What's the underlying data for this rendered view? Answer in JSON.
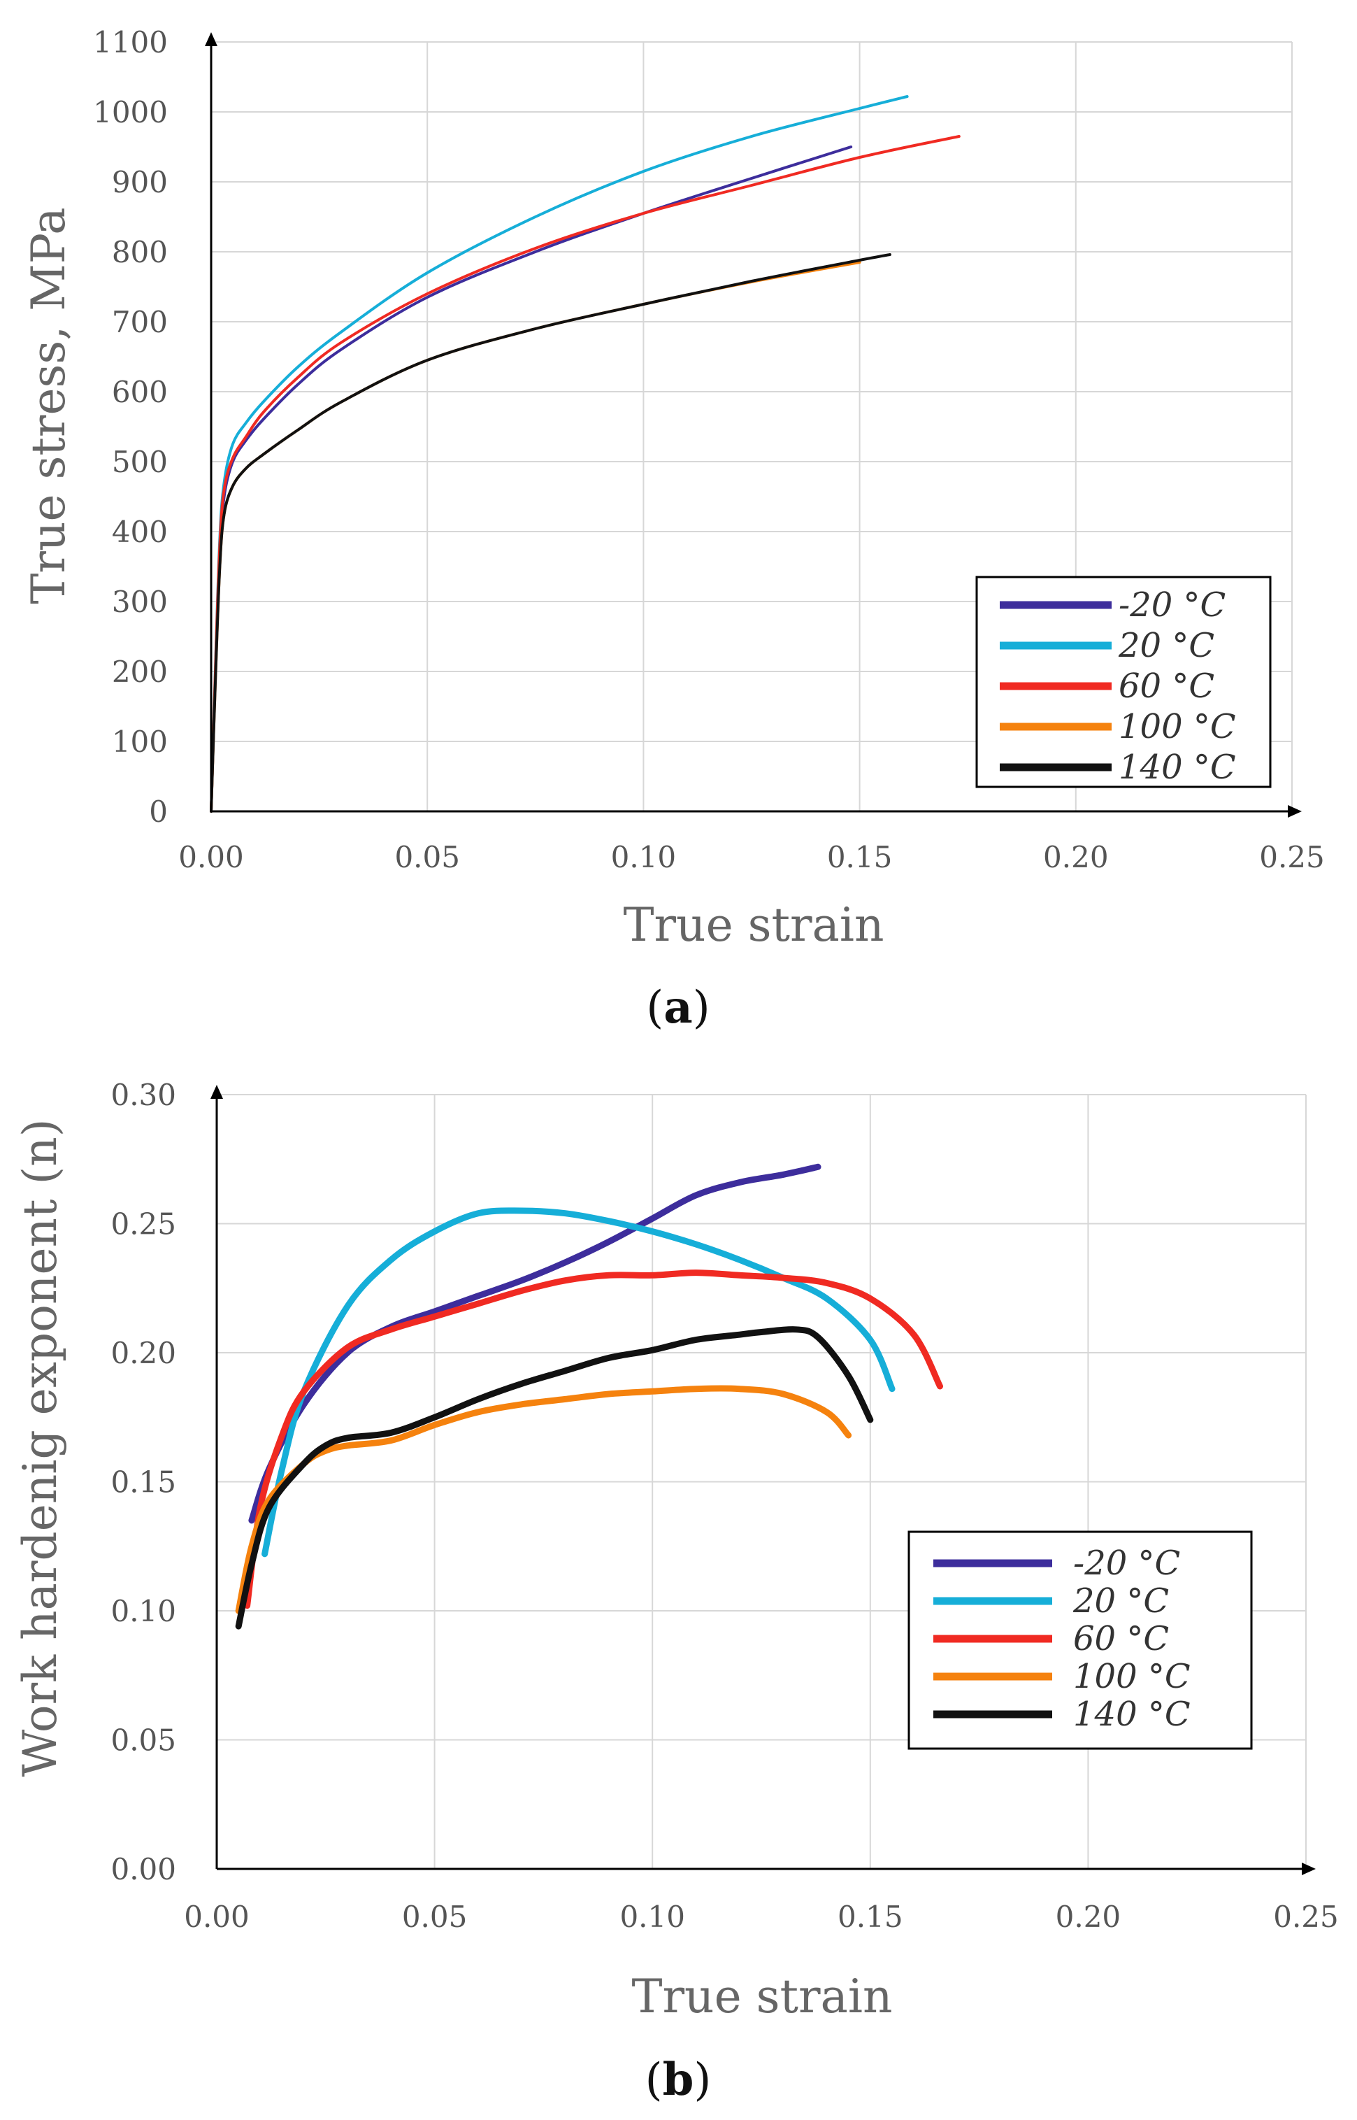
{
  "chart_data": [
    {
      "type": "line",
      "panel": "a",
      "title": "",
      "xlabel": "True strain",
      "ylabel": "True stress, MPa",
      "xlim": [
        0,
        0.25
      ],
      "ylim": [
        0,
        1100
      ],
      "xticks": [
        0,
        0.05,
        0.1,
        0.15,
        0.2,
        0.25
      ],
      "xtick_labels": [
        "0.00",
        "0.05",
        "0.10",
        "0.15",
        "0.20",
        "0.25"
      ],
      "yticks": [
        0,
        100,
        200,
        300,
        400,
        500,
        600,
        700,
        800,
        900,
        1000,
        1100
      ],
      "ytick_labels": [
        "0",
        "100",
        "200",
        "300",
        "400",
        "500",
        "600",
        "700",
        "800",
        "900",
        "1000",
        "1100"
      ],
      "grid": true,
      "legend_position": "bottom-right",
      "series": [
        {
          "name": "-20 °C",
          "color": "#3d2d9c",
          "x": [
            0,
            0.001,
            0.002,
            0.003,
            0.005,
            0.008,
            0.012,
            0.02,
            0.03,
            0.05,
            0.075,
            0.1,
            0.125,
            0.148
          ],
          "y": [
            0,
            200,
            370,
            450,
            500,
            530,
            560,
            610,
            660,
            735,
            800,
            855,
            905,
            950
          ]
        },
        {
          "name": "20 °C",
          "color": "#16aed8",
          "x": [
            0,
            0.001,
            0.002,
            0.003,
            0.005,
            0.008,
            0.012,
            0.02,
            0.03,
            0.05,
            0.075,
            0.1,
            0.125,
            0.15,
            0.161
          ],
          "y": [
            0,
            210,
            390,
            470,
            525,
            555,
            585,
            635,
            685,
            770,
            850,
            915,
            965,
            1005,
            1022
          ]
        },
        {
          "name": "60 °C",
          "color": "#f02a22",
          "x": [
            0,
            0.001,
            0.002,
            0.003,
            0.005,
            0.008,
            0.012,
            0.02,
            0.03,
            0.05,
            0.075,
            0.1,
            0.125,
            0.15,
            0.173
          ],
          "y": [
            0,
            205,
            380,
            460,
            505,
            535,
            570,
            620,
            670,
            740,
            805,
            855,
            895,
            935,
            965
          ]
        },
        {
          "name": "100 °C",
          "color": "#f5820e",
          "x": [
            0,
            0.001,
            0.002,
            0.003,
            0.005,
            0.008,
            0.012,
            0.02,
            0.03,
            0.05,
            0.075,
            0.1,
            0.125,
            0.15
          ],
          "y": [
            0,
            190,
            350,
            425,
            465,
            490,
            510,
            545,
            585,
            645,
            690,
            725,
            757,
            785
          ]
        },
        {
          "name": "140 °C",
          "color": "#111111",
          "x": [
            0,
            0.001,
            0.002,
            0.003,
            0.005,
            0.008,
            0.012,
            0.02,
            0.03,
            0.05,
            0.075,
            0.1,
            0.125,
            0.15,
            0.157
          ],
          "y": [
            0,
            190,
            350,
            425,
            465,
            490,
            510,
            545,
            585,
            645,
            690,
            725,
            758,
            788,
            796
          ]
        }
      ]
    },
    {
      "type": "line",
      "panel": "b",
      "title": "",
      "xlabel": "True strain",
      "ylabel": "Work hardenig exponent (n)",
      "xlim": [
        0,
        0.25
      ],
      "ylim": [
        0,
        0.3
      ],
      "xticks": [
        0,
        0.05,
        0.1,
        0.15,
        0.2,
        0.25
      ],
      "xtick_labels": [
        "0.00",
        "0.05",
        "0.10",
        "0.15",
        "0.20",
        "0.25"
      ],
      "yticks": [
        0,
        0.05,
        0.1,
        0.15,
        0.2,
        0.25,
        0.3
      ],
      "ytick_labels": [
        "0.00",
        "0.05",
        "0.10",
        "0.15",
        "0.20",
        "0.25",
        "0.30"
      ],
      "grid": true,
      "legend_position": "bottom-right",
      "series": [
        {
          "name": "-20 °C",
          "color": "#3d2d9c",
          "x": [
            0.008,
            0.012,
            0.02,
            0.03,
            0.04,
            0.05,
            0.06,
            0.07,
            0.08,
            0.09,
            0.1,
            0.11,
            0.12,
            0.13,
            0.138
          ],
          "y": [
            0.135,
            0.155,
            0.18,
            0.2,
            0.21,
            0.216,
            0.222,
            0.228,
            0.235,
            0.243,
            0.252,
            0.261,
            0.266,
            0.269,
            0.272
          ]
        },
        {
          "name": "20 °C",
          "color": "#16aed8",
          "x": [
            0.011,
            0.015,
            0.02,
            0.03,
            0.04,
            0.05,
            0.06,
            0.07,
            0.08,
            0.09,
            0.1,
            0.11,
            0.12,
            0.13,
            0.14,
            0.15,
            0.155
          ],
          "y": [
            0.122,
            0.155,
            0.185,
            0.218,
            0.236,
            0.247,
            0.254,
            0.255,
            0.254,
            0.251,
            0.247,
            0.242,
            0.236,
            0.229,
            0.221,
            0.205,
            0.186
          ]
        },
        {
          "name": "60 °C",
          "color": "#f02a22",
          "x": [
            0.007,
            0.01,
            0.015,
            0.02,
            0.03,
            0.04,
            0.05,
            0.06,
            0.07,
            0.08,
            0.09,
            0.1,
            0.11,
            0.12,
            0.13,
            0.14,
            0.15,
            0.16,
            0.166
          ],
          "y": [
            0.102,
            0.14,
            0.168,
            0.185,
            0.202,
            0.209,
            0.214,
            0.219,
            0.224,
            0.228,
            0.23,
            0.23,
            0.231,
            0.23,
            0.229,
            0.227,
            0.221,
            0.207,
            0.187
          ]
        },
        {
          "name": "100 °C",
          "color": "#f5820e",
          "x": [
            0.005,
            0.008,
            0.012,
            0.02,
            0.025,
            0.03,
            0.04,
            0.05,
            0.06,
            0.07,
            0.08,
            0.09,
            0.1,
            0.11,
            0.12,
            0.13,
            0.14,
            0.145
          ],
          "y": [
            0.1,
            0.125,
            0.143,
            0.157,
            0.162,
            0.164,
            0.166,
            0.172,
            0.177,
            0.18,
            0.182,
            0.184,
            0.185,
            0.186,
            0.186,
            0.184,
            0.177,
            0.168
          ]
        },
        {
          "name": "140 °C",
          "color": "#111111",
          "x": [
            0.005,
            0.008,
            0.012,
            0.02,
            0.025,
            0.03,
            0.04,
            0.05,
            0.06,
            0.07,
            0.08,
            0.09,
            0.1,
            0.11,
            0.12,
            0.125,
            0.133,
            0.138,
            0.145,
            0.15
          ],
          "y": [
            0.094,
            0.118,
            0.14,
            0.157,
            0.164,
            0.167,
            0.169,
            0.175,
            0.182,
            0.188,
            0.193,
            0.198,
            0.201,
            0.205,
            0.207,
            0.208,
            0.209,
            0.206,
            0.191,
            0.174
          ]
        }
      ]
    }
  ],
  "labels": {
    "panel_a": {
      "open": "(",
      "letter": "a",
      "close": ")"
    },
    "panel_b": {
      "open": "(",
      "letter": "b",
      "close": ")"
    }
  }
}
